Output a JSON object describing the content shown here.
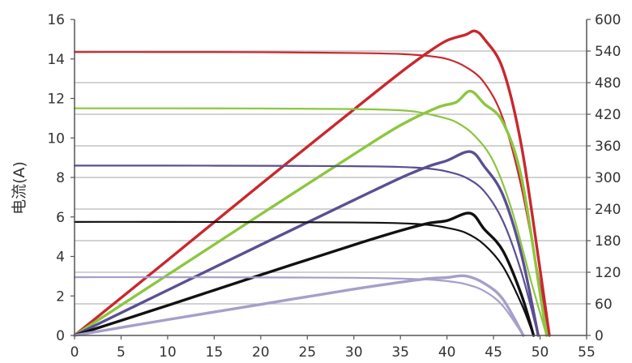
{
  "chart_data": {
    "type": "line",
    "title": "",
    "xlabel": "",
    "ylabel": "电流(A)",
    "y2label": "",
    "xlim": [
      0,
      55
    ],
    "ylim": [
      0,
      16
    ],
    "y2lim": [
      0,
      600
    ],
    "x_ticks": [
      "0",
      "5",
      "10",
      "15",
      "20",
      "25",
      "30",
      "35",
      "40",
      "45",
      "50",
      "55"
    ],
    "y_ticks": [
      "0",
      "2",
      "4",
      "6",
      "8",
      "10",
      "12",
      "14",
      "16"
    ],
    "y2_ticks": [
      "0",
      "60",
      "120",
      "180",
      "240",
      "300",
      "360",
      "420",
      "480",
      "540",
      "600"
    ],
    "grid": "horizontal",
    "legend": "none",
    "series": [
      {
        "kind": "current",
        "axis": "left",
        "color": "#c8282e",
        "x": [
          0,
          10,
          20,
          30,
          35,
          38,
          40,
          42,
          44,
          46,
          48,
          50,
          51
        ],
        "y": [
          14.35,
          14.35,
          14.34,
          14.3,
          14.25,
          14.15,
          14.0,
          13.6,
          12.8,
          11.0,
          7.5,
          2.5,
          0
        ]
      },
      {
        "kind": "power",
        "axis": "right",
        "color": "#c8282e",
        "x": [
          0,
          10,
          20,
          30,
          35,
          38,
          40,
          42,
          43,
          44,
          46,
          48,
          50,
          51
        ],
        "y": [
          0,
          143,
          287,
          429,
          499,
          538,
          560,
          571,
          578,
          563,
          506,
          360,
          125,
          0
        ]
      },
      {
        "kind": "current",
        "axis": "left",
        "color": "#8cc63f",
        "x": [
          0,
          10,
          20,
          30,
          35,
          37,
          39,
          41,
          43,
          45,
          47,
          49,
          50.7
        ],
        "y": [
          11.5,
          11.5,
          11.49,
          11.46,
          11.4,
          11.3,
          11.1,
          10.8,
          10.1,
          8.8,
          6.3,
          2.8,
          0
        ]
      },
      {
        "kind": "power",
        "axis": "right",
        "color": "#8cc63f",
        "x": [
          0,
          10,
          20,
          30,
          35,
          39,
          41,
          42.5,
          44,
          46,
          48,
          50,
          50.7
        ],
        "y": [
          0,
          115,
          230,
          344,
          399,
          433,
          443,
          464,
          440,
          405,
          300,
          80,
          0
        ]
      },
      {
        "kind": "current",
        "axis": "left",
        "color": "#5b4f93",
        "x": [
          0,
          10,
          20,
          30,
          35,
          38,
          40,
          42,
          44,
          46,
          48,
          49.8
        ],
        "y": [
          8.6,
          8.6,
          8.59,
          8.57,
          8.53,
          8.45,
          8.3,
          8.0,
          7.3,
          5.8,
          3.2,
          0
        ]
      },
      {
        "kind": "power",
        "axis": "right",
        "color": "#5b4f93",
        "x": [
          0,
          10,
          20,
          30,
          35,
          38,
          40,
          42.5,
          44,
          46,
          48,
          49.8
        ],
        "y": [
          0,
          86,
          172,
          257,
          299,
          321,
          332,
          349,
          321,
          267,
          154,
          0
        ]
      },
      {
        "kind": "current",
        "axis": "left",
        "color": "#111111",
        "x": [
          0,
          10,
          20,
          30,
          35,
          38,
          40,
          42,
          44,
          46,
          48,
          49.3
        ],
        "y": [
          5.75,
          5.75,
          5.74,
          5.72,
          5.68,
          5.6,
          5.45,
          5.2,
          4.6,
          3.5,
          1.6,
          0
        ]
      },
      {
        "kind": "power",
        "axis": "right",
        "color": "#111111",
        "x": [
          0,
          10,
          20,
          30,
          35,
          38,
          40,
          42.5,
          44,
          46,
          48,
          49.3
        ],
        "y": [
          0,
          57,
          115,
          172,
          199,
          213,
          218,
          232,
          202,
          161,
          77,
          0
        ]
      },
      {
        "kind": "current",
        "axis": "left",
        "color": "#a79ec9",
        "x": [
          0,
          10,
          20,
          30,
          35,
          38,
          40,
          42,
          44,
          46,
          48.2
        ],
        "y": [
          2.95,
          2.95,
          2.94,
          2.92,
          2.88,
          2.83,
          2.75,
          2.6,
          2.25,
          1.5,
          0
        ]
      },
      {
        "kind": "power",
        "axis": "right",
        "color": "#a79ec9",
        "x": [
          0,
          10,
          20,
          30,
          35,
          38,
          40,
          42,
          44,
          46,
          48.2
        ],
        "y": [
          0,
          30,
          59,
          88,
          101,
          108,
          110,
          113,
          99,
          69,
          0
        ]
      }
    ]
  }
}
